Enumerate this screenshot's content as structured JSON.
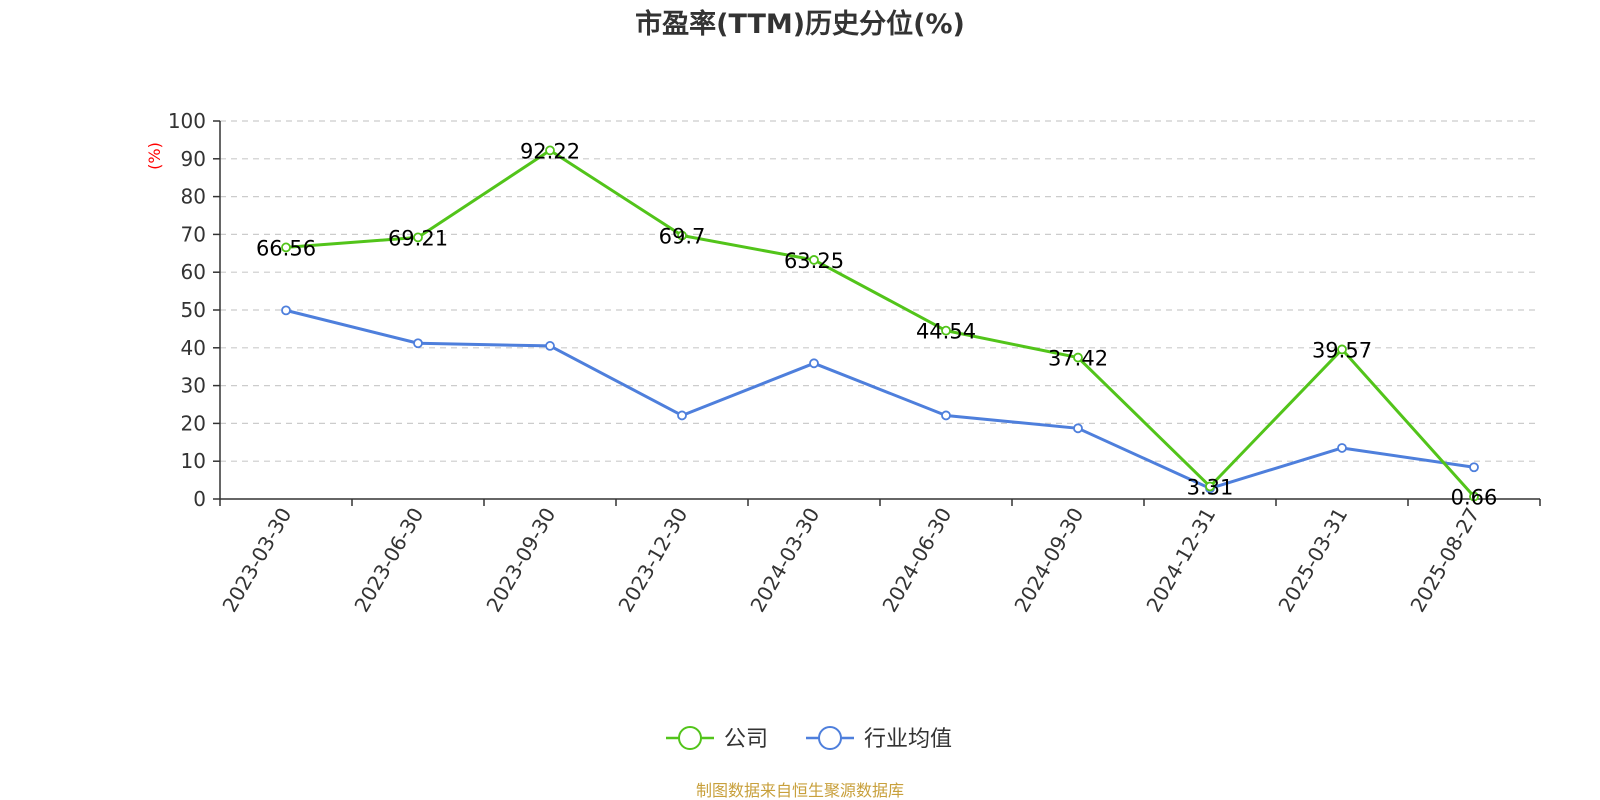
{
  "chart_data": {
    "type": "line",
    "title": "市盈率(TTM)历史分位(%)",
    "ylabel": "(%)",
    "ylim": [
      0,
      100
    ],
    "yticks": [
      0,
      10,
      20,
      30,
      40,
      50,
      60,
      70,
      80,
      90,
      100
    ],
    "categories": [
      "2023-03-30",
      "2023-06-30",
      "2023-09-30",
      "2023-12-30",
      "2024-03-30",
      "2024-06-30",
      "2024-09-30",
      "2024-12-31",
      "2025-03-31",
      "2025-08-27"
    ],
    "series": [
      {
        "name": "公司",
        "color": "#52c41a",
        "values": [
          66.56,
          69.21,
          92.22,
          69.7,
          63.25,
          44.54,
          37.42,
          3.31,
          39.57,
          0.66
        ],
        "labels": [
          "66.56",
          "69.21",
          "92.22",
          "69.7",
          "63.25",
          "44.54",
          "37.42",
          "3.31",
          "39.57",
          "0.66"
        ]
      },
      {
        "name": "行业均值",
        "color": "#4e7fdc",
        "values": [
          49.9,
          41.2,
          40.5,
          22.1,
          35.9,
          22.1,
          18.7,
          2.8,
          13.5,
          8.4
        ]
      }
    ],
    "grid": true,
    "legend_position": "bottom-center",
    "source": "制图数据来自恒生聚源数据库"
  }
}
